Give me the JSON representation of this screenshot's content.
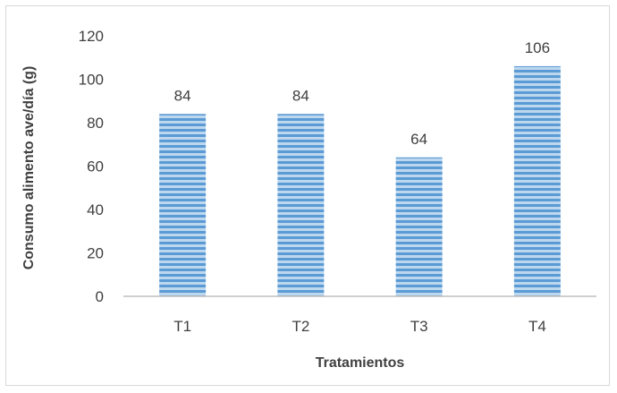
{
  "chart_data": {
    "type": "bar",
    "categories": [
      "T1",
      "T2",
      "T3",
      "T4"
    ],
    "values": [
      84,
      84,
      64,
      106
    ],
    "data_labels": [
      "84",
      "84",
      "64",
      "106"
    ],
    "xlabel": "Tratamientos",
    "ylabel": "Consumo alimento ave/día (g)",
    "ylim": [
      0,
      120
    ],
    "yticks": [
      0,
      20,
      40,
      60,
      80,
      100,
      120
    ],
    "grid": false,
    "legend": "none",
    "bar_color": "#5b9bd5",
    "bar_stripe_color": "#bdd7ee"
  }
}
